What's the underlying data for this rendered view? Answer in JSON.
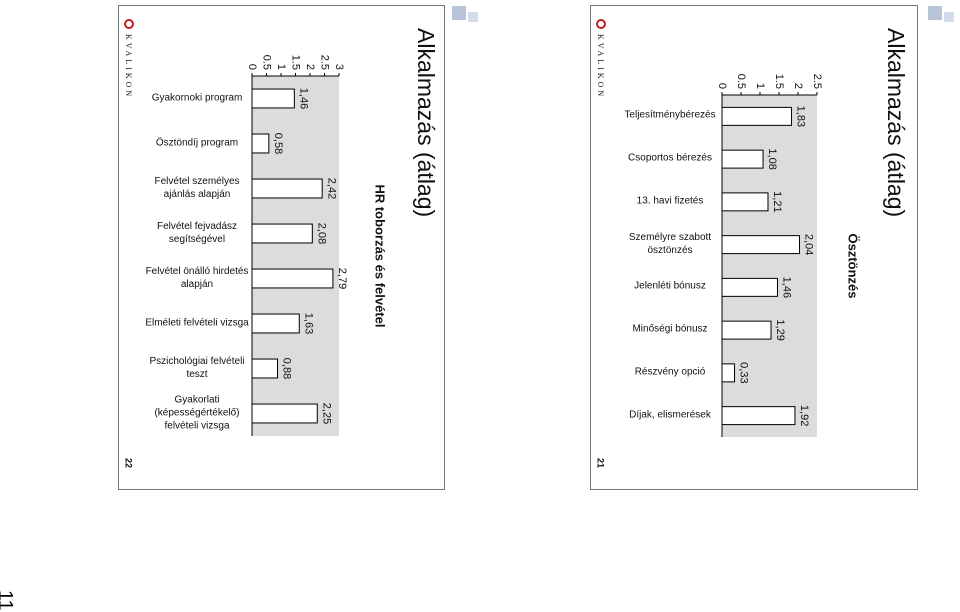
{
  "sheet_number": "11",
  "pages": [
    {
      "number": "22",
      "logo": "KVALIKON"
    },
    {
      "number": "21",
      "logo": "KVALIKON"
    }
  ],
  "chart_data": [
    {
      "type": "bar",
      "title": "Alkalmazás (átlag)",
      "subtitle": "HR toborzás és felvétel",
      "categories": [
        "Gyakornoki program",
        "Ösztöndíj program",
        "Felvétel személyes ajánlás alapján",
        "Felvétel fejvadász segítségével",
        "Felvétel önálló hirdetés alapján",
        "Elméleti felvételi vizsga",
        "Pszichológiai felvételi teszt",
        "Gyakorlati (képességértékelő) felvételi vizsga"
      ],
      "values": [
        1.46,
        0.58,
        2.42,
        2.08,
        2.79,
        1.63,
        0.88,
        2.25
      ],
      "value_labels": [
        "1,46",
        "0,58",
        "2,42",
        "2,08",
        "2,79",
        "1,63",
        "0,88",
        "2,25"
      ],
      "ylim": [
        0,
        3
      ],
      "yticks": [
        0,
        0.5,
        1,
        1.5,
        2,
        2.5,
        3
      ],
      "color": "#ffffff",
      "plot_color": "#dcdcdc"
    },
    {
      "type": "bar",
      "title": "Alkalmazás (átlag)",
      "subtitle": "Ösztönzés",
      "categories": [
        "Teljesítménybérezés",
        "Csoportos bérezés",
        "13. havi fizetés",
        "Személyre szabott ösztönzés",
        "Jelenléti bónusz",
        "Minőségi bónusz",
        "Részvény opció",
        "Díjak, elismerések"
      ],
      "values": [
        1.83,
        1.08,
        1.21,
        2.04,
        1.46,
        1.29,
        0.33,
        1.92
      ],
      "value_labels": [
        "1,83",
        "1,08",
        "1,21",
        "2,04",
        "1,46",
        "1,29",
        "0,33",
        "1,92"
      ],
      "ylim": [
        0,
        2.5
      ],
      "yticks": [
        0,
        0.5,
        1,
        1.5,
        2,
        2.5
      ],
      "color": "#ffffff",
      "plot_color": "#dcdcdc"
    }
  ]
}
